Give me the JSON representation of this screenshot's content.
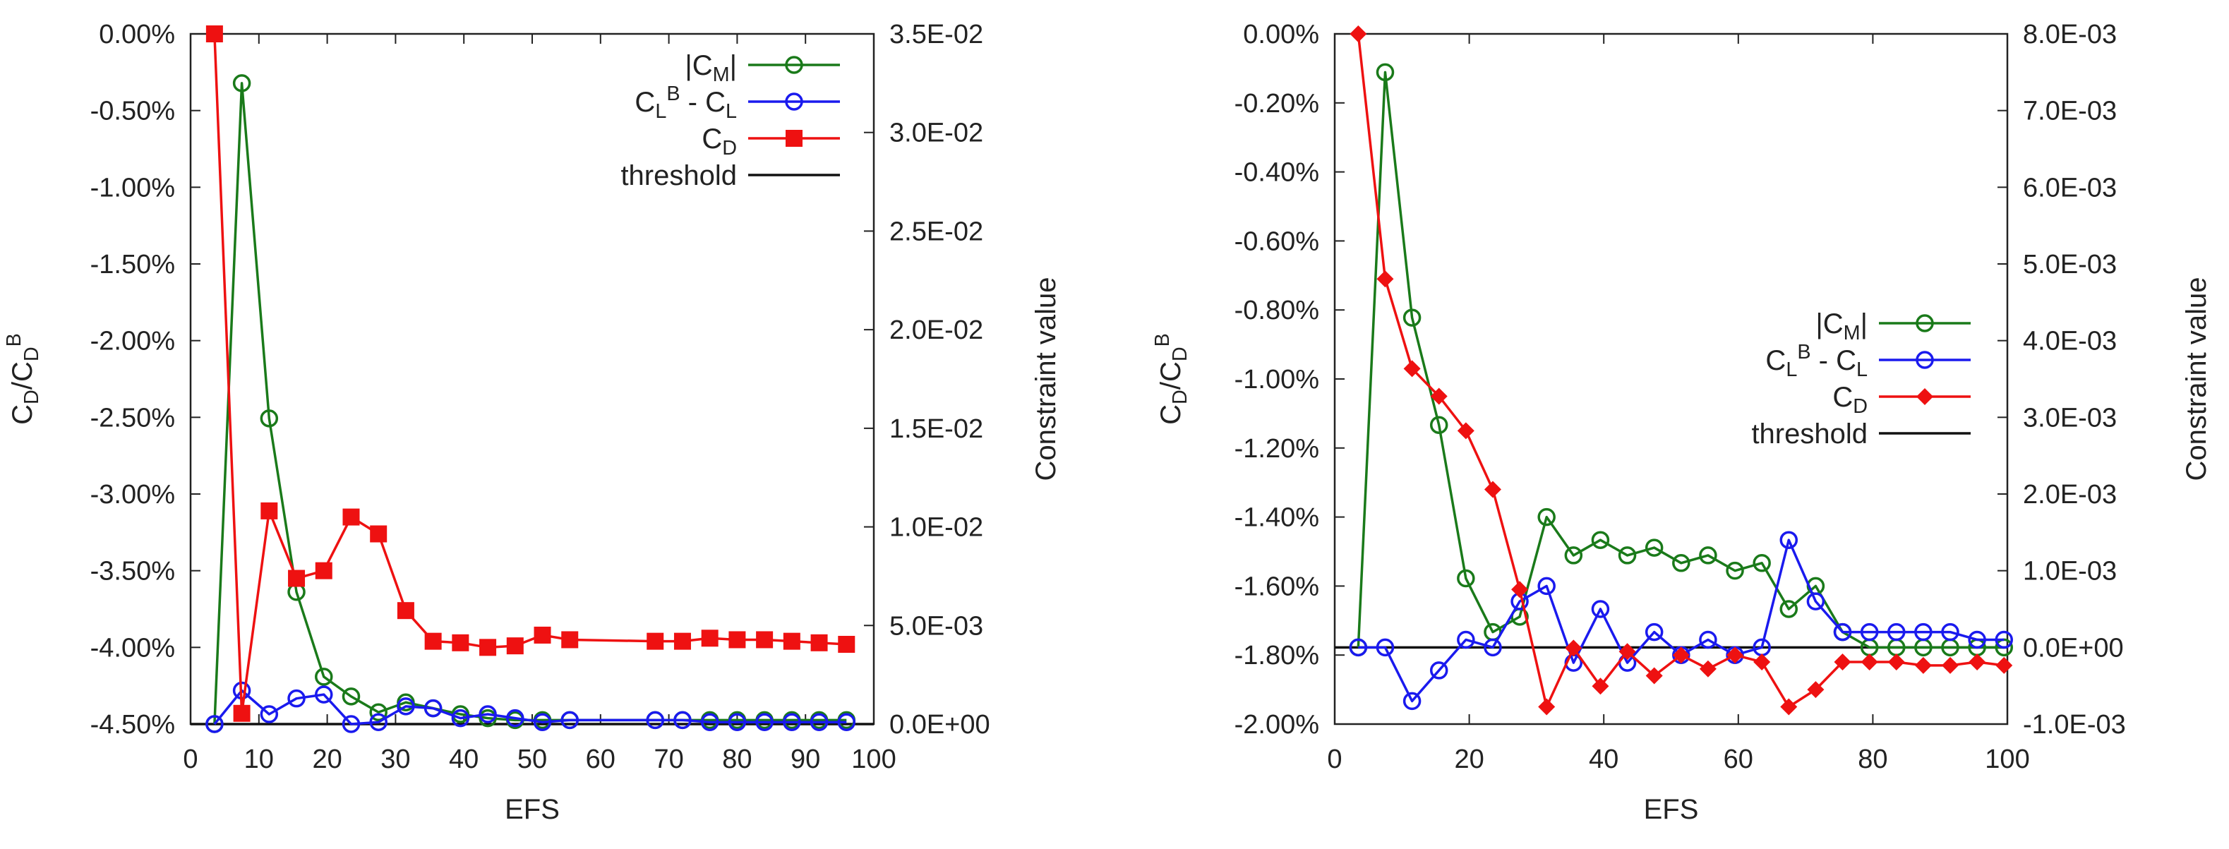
{
  "chart_data": [
    {
      "type": "line",
      "xlabel": "EFS",
      "ylabel": "C_D/C_D^B",
      "y2label": "Constraint value",
      "xlim": [
        0,
        100
      ],
      "ylim": [
        -4.5,
        0.0
      ],
      "y2lim": [
        0.0,
        0.035
      ],
      "xticks": [
        "0",
        "10",
        "20",
        "30",
        "40",
        "50",
        "60",
        "70",
        "80",
        "90",
        "100"
      ],
      "yticks": [
        "0.00%",
        "-0.50%",
        "-1.00%",
        "-1.50%",
        "-2.00%",
        "-2.50%",
        "-3.00%",
        "-3.50%",
        "-4.00%",
        "-4.50%"
      ],
      "y2ticks": [
        "3.5E-02",
        "3.0E-02",
        "2.5E-02",
        "2.0E-02",
        "1.5E-02",
        "1.0E-02",
        "5.0E-03",
        "0.0E+00"
      ],
      "legend_position": "top-right",
      "series": [
        {
          "name": "|C_M|",
          "axis": "y2",
          "color": "#1a7a1a",
          "marker": "open-circle",
          "x": [
            3.5,
            7.5,
            11.5,
            15.5,
            19.5,
            23.5,
            27.5,
            31.5,
            35.5,
            39.5,
            43.5,
            47.5,
            51.5,
            55.5,
            68,
            72,
            76,
            80,
            84,
            88,
            92,
            96
          ],
          "values": [
            0.0,
            0.0325,
            0.0155,
            0.0067,
            0.0024,
            0.0014,
            0.0006,
            0.0011,
            0.0008,
            0.0005,
            0.0003,
            0.0002,
            0.0002,
            0.0002,
            0.0002,
            0.0002,
            0.0002,
            0.0002,
            0.0002,
            0.0002,
            0.0002,
            0.0002
          ]
        },
        {
          "name": "C_L^B - C_L",
          "axis": "y2",
          "color": "#1a1aee",
          "marker": "open-circle",
          "x": [
            3.5,
            7.5,
            11.5,
            15.5,
            19.5,
            23.5,
            27.5,
            31.5,
            35.5,
            39.5,
            43.5,
            47.5,
            51.5,
            55.5,
            68,
            72,
            76,
            80,
            84,
            88,
            92,
            96
          ],
          "values": [
            0.0,
            0.0017,
            0.0005,
            0.0013,
            0.0015,
            0.0,
            0.0001,
            0.0009,
            0.0008,
            0.0003,
            0.0005,
            0.0003,
            0.0001,
            0.0002,
            0.0002,
            0.0002,
            0.0001,
            0.0001,
            0.0001,
            0.0001,
            0.0001,
            0.0001
          ]
        },
        {
          "name": "C_D",
          "axis": "y",
          "color": "#ee1111",
          "marker": "filled-square",
          "x": [
            3.5,
            7.5,
            11.5,
            15.5,
            19.5,
            23.5,
            27.5,
            31.5,
            35.5,
            39.5,
            43.5,
            47.5,
            51.5,
            55.5,
            68,
            72,
            76,
            80,
            84,
            88,
            92,
            96
          ],
          "values": [
            0.0,
            -4.43,
            -3.11,
            -3.55,
            -3.5,
            -3.15,
            -3.26,
            -3.76,
            -3.96,
            -3.97,
            -4.0,
            -3.99,
            -3.92,
            -3.95,
            -3.96,
            -3.96,
            -3.94,
            -3.95,
            -3.95,
            -3.96,
            -3.97,
            -3.98
          ]
        },
        {
          "name": "threshold",
          "axis": "y2",
          "color": "#111111",
          "marker": "none",
          "x": [
            3.5,
            96
          ],
          "values": [
            0.0,
            0.0
          ]
        }
      ]
    },
    {
      "type": "line",
      "xlabel": "EFS",
      "ylabel": "C_D/C_D^B",
      "y2label": "Constraint value",
      "xlim": [
        0,
        100
      ],
      "ylim": [
        -2.0,
        0.0
      ],
      "y2lim": [
        -0.001,
        0.008
      ],
      "xticks": [
        "0",
        "20",
        "40",
        "60",
        "80",
        "100"
      ],
      "yticks": [
        "0.00%",
        "-0.20%",
        "-0.40%",
        "-0.60%",
        "-0.80%",
        "-1.00%",
        "-1.20%",
        "-1.40%",
        "-1.60%",
        "-1.80%",
        "-2.00%"
      ],
      "y2ticks": [
        "8.0E-03",
        "7.0E-03",
        "6.0E-03",
        "5.0E-03",
        "4.0E-03",
        "3.0E-03",
        "2.0E-03",
        "1.0E-03",
        "0.0E+00",
        "-1.0E-03"
      ],
      "legend_position": "center-right",
      "series": [
        {
          "name": "|C_M|",
          "axis": "y2",
          "color": "#1a7a1a",
          "marker": "open-circle",
          "x": [
            3.5,
            7.5,
            11.5,
            15.5,
            19.5,
            23.5,
            27.5,
            31.5,
            35.5,
            39.5,
            43.5,
            47.5,
            51.5,
            55.5,
            59.5,
            63.5,
            67.5,
            71.5,
            75.5,
            79.5,
            83.5,
            87.5,
            91.5,
            95.5,
            99.5
          ],
          "values": [
            0.0,
            0.0075,
            0.0043,
            0.0029,
            0.0009,
            0.0002,
            0.0004,
            0.0017,
            0.0012,
            0.0014,
            0.0012,
            0.0013,
            0.0011,
            0.0012,
            0.001,
            0.0011,
            0.0005,
            0.0008,
            0.0002,
            0.0,
            0.0,
            0.0,
            0.0,
            0.0,
            0.0
          ]
        },
        {
          "name": "C_L^B - C_L",
          "axis": "y2",
          "color": "#1a1aee",
          "marker": "open-circle",
          "x": [
            3.5,
            7.5,
            11.5,
            15.5,
            19.5,
            23.5,
            27.5,
            31.5,
            35.5,
            39.5,
            43.5,
            47.5,
            51.5,
            55.5,
            59.5,
            63.5,
            67.5,
            71.5,
            75.5,
            79.5,
            83.5,
            87.5,
            91.5,
            95.5,
            99.5
          ],
          "values": [
            0.0,
            0.0,
            -0.0007,
            -0.0003,
            0.0001,
            0.0,
            0.0006,
            0.0008,
            -0.0002,
            0.0005,
            -0.0002,
            0.0002,
            -0.0001,
            0.0001,
            -0.0001,
            0.0,
            0.0014,
            0.0006,
            0.0002,
            0.0002,
            0.0002,
            0.0002,
            0.0002,
            0.0001,
            0.0001
          ]
        },
        {
          "name": "C_D",
          "axis": "y",
          "color": "#ee1111",
          "marker": "filled-diamond",
          "x": [
            3.5,
            7.5,
            11.5,
            15.5,
            19.5,
            23.5,
            27.5,
            31.5,
            35.5,
            39.5,
            43.5,
            47.5,
            51.5,
            55.5,
            59.5,
            63.5,
            67.5,
            71.5,
            75.5,
            79.5,
            83.5,
            87.5,
            91.5,
            95.5,
            99.5
          ],
          "values": [
            0.0,
            -0.71,
            -0.97,
            -1.05,
            -1.15,
            -1.32,
            -1.61,
            -1.95,
            -1.78,
            -1.89,
            -1.79,
            -1.86,
            -1.8,
            -1.84,
            -1.8,
            -1.82,
            -1.95,
            -1.9,
            -1.82,
            -1.82,
            -1.82,
            -1.83,
            -1.83,
            -1.82,
            -1.83
          ]
        },
        {
          "name": "threshold",
          "axis": "y2",
          "color": "#111111",
          "marker": "none",
          "x": [
            0,
            100
          ],
          "values": [
            0.0,
            0.0
          ]
        }
      ]
    }
  ]
}
